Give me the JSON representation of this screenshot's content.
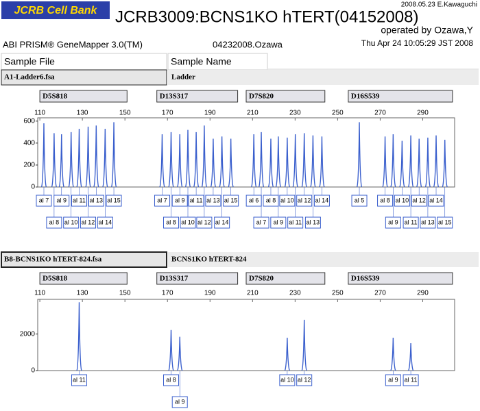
{
  "header": {
    "logo": "JCRB Cell Bank",
    "title": "JCRB3009:BCNS1KO hTERT(04152008)",
    "stamp": "2008.05.23 E.Kawaguchi",
    "operator": "operated by Ozawa,Y",
    "software": "ABI PRISM® GeneMapper 3.0(TM)",
    "run": "04232008.Ozawa",
    "date": "Thu Apr 24 10:05:29 JST 2008",
    "columns": [
      "Sample File",
      "Sample Name"
    ]
  },
  "chart_data": [
    {
      "type": "electropherogram",
      "sample_file": "A1-Ladder6.fsa",
      "sample_name": "Ladder",
      "color": "#3a5fcd",
      "xlim": [
        109,
        305
      ],
      "xticks": [
        110,
        130,
        150,
        170,
        190,
        210,
        230,
        250,
        270,
        290
      ],
      "ylim": [
        0,
        630
      ],
      "yticks": [
        0,
        200,
        400,
        600
      ],
      "markers": [
        {
          "name": "D5S818",
          "range": [
            110,
            151
          ]
        },
        {
          "name": "D13S317",
          "range": [
            165,
            203
          ]
        },
        {
          "name": "D7S820",
          "range": [
            207,
            244
          ]
        },
        {
          "name": "D16S539",
          "range": [
            255,
            304
          ]
        }
      ],
      "x": [
        111.9,
        116.7,
        120.2,
        124.7,
        128.5,
        132.7,
        136.5,
        140.7,
        144.8,
        167.5,
        171.7,
        175.8,
        179.6,
        183.5,
        187.3,
        191.5,
        195.6,
        199.8,
        210.6,
        214.1,
        218.6,
        222.1,
        226.3,
        230.1,
        234.3,
        238.4,
        242.6,
        260.2,
        272.3,
        276.1,
        280.3,
        284.4,
        288.3,
        292.4,
        296.3,
        300.4
      ],
      "values": [
        580,
        490,
        480,
        500,
        530,
        550,
        560,
        530,
        590,
        480,
        500,
        480,
        520,
        500,
        560,
        440,
        460,
        440,
        480,
        500,
        440,
        460,
        450,
        480,
        490,
        470,
        460,
        590,
        460,
        480,
        420,
        470,
        440,
        450,
        470,
        430
      ],
      "labels": [
        "al 7",
        "al 8",
        "al 9",
        "al 10",
        "al 11",
        "al 12",
        "al 13",
        "al 14",
        "al 15",
        "al 7",
        "al 8",
        "al 9",
        "al 10",
        "al 11",
        "al 12",
        "al 13",
        "al 14",
        "al 15",
        "al 6",
        "al 7",
        "al 8",
        "al 9",
        "al 10",
        "al 11",
        "al 12",
        "al 13",
        "al 14",
        "al 5",
        "al 8",
        "al 9",
        "al 10",
        "al 11",
        "al 12",
        "al 13",
        "al 14",
        "al 15"
      ]
    },
    {
      "type": "electropherogram",
      "sample_file": "B8-BCNS1KO hTERT-824.fsa",
      "sample_name": "BCNS1KO hTERT-824",
      "color": "#3a5fcd",
      "xlim": [
        109,
        305
      ],
      "xticks": [
        110,
        130,
        150,
        170,
        190,
        210,
        230,
        250,
        270,
        290
      ],
      "ylim": [
        0,
        3900
      ],
      "yticks": [
        0,
        2000
      ],
      "markers": [
        {
          "name": "D5S818",
          "range": [
            110,
            151
          ]
        },
        {
          "name": "D13S317",
          "range": [
            165,
            203
          ]
        },
        {
          "name": "D7S820",
          "range": [
            207,
            244
          ]
        },
        {
          "name": "D16S539",
          "range": [
            255,
            304
          ]
        }
      ],
      "x": [
        128.5,
        171.7,
        175.8,
        226.3,
        234.3,
        276.1,
        284.4
      ],
      "values": [
        3740,
        2220,
        1850,
        1800,
        2780,
        1800,
        1500
      ],
      "labels": [
        "al 11",
        "al 8",
        "al 9",
        "al 10",
        "al 12",
        "al 9",
        "al 11"
      ]
    }
  ]
}
